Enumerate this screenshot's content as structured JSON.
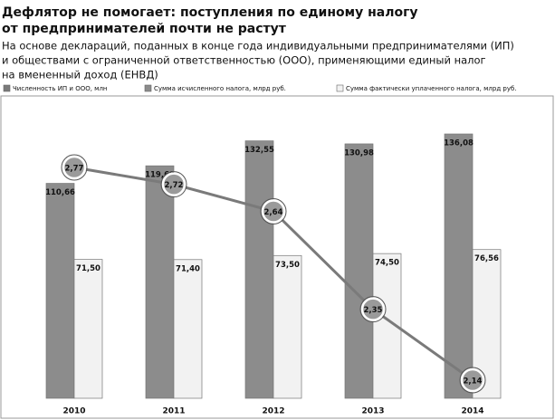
{
  "chart_data": {
    "type": "bar",
    "title_lines": [
      "Дефлятор не помогает: поступления по единому налогу",
      "от предпринимателей почти не растут"
    ],
    "subtitle_lines": [
      "На основе деклараций, поданных в конце года индивидуальными предпринимателями (ИП)",
      "и обществами с ограниченной ответственностью (ООО), применяющими единый налог",
      "на вмененный доход (ЕНВД)"
    ],
    "categories": [
      "2010",
      "2011",
      "2012",
      "2013",
      "2014"
    ],
    "series": [
      {
        "name": "Численность ИП и ООО, млн",
        "type": "line",
        "color": "#7a7a7a",
        "values": [
          2.77,
          2.72,
          2.64,
          2.35,
          2.14
        ],
        "value_labels": [
          "2,77",
          "2,72",
          "2,64",
          "2,35",
          "2,14"
        ]
      },
      {
        "name": "Сумма исчисленного налога, млрд руб.",
        "type": "bar",
        "color": "#8c8c8c",
        "values": [
          110.66,
          119.69,
          132.55,
          130.98,
          136.08
        ],
        "value_labels": [
          "110,66",
          "119,69",
          "132,55",
          "130,98",
          "136,08"
        ]
      },
      {
        "name": "Сумма фактически уплаченного налога, млрд руб.",
        "type": "bar",
        "color": "#f2f2f2",
        "values": [
          71.5,
          71.4,
          73.5,
          74.5,
          76.56
        ],
        "value_labels": [
          "71,50",
          "71,40",
          "73,50",
          "74,50",
          "76,56"
        ]
      }
    ]
  }
}
